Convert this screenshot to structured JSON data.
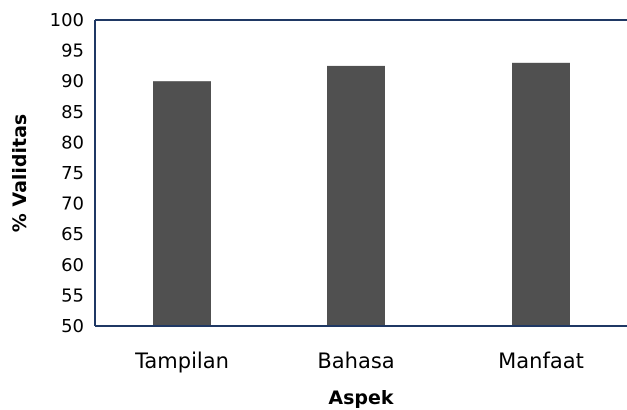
{
  "chart_data": {
    "type": "bar",
    "categories": [
      "Tampilan",
      "Bahasa",
      "Manfaat"
    ],
    "values": [
      90,
      92.5,
      93
    ],
    "title": "",
    "xlabel": "Aspek",
    "ylabel": "% Validitas",
    "ylim": [
      50,
      100
    ],
    "yticks": [
      "50",
      "55",
      "60",
      "65",
      "70",
      "75",
      "80",
      "85",
      "90",
      "95",
      "100"
    ],
    "grid": false,
    "legend": "none",
    "colors": {
      "bar": "#505050",
      "axis": "#1F3864",
      "text": "#000000"
    }
  }
}
